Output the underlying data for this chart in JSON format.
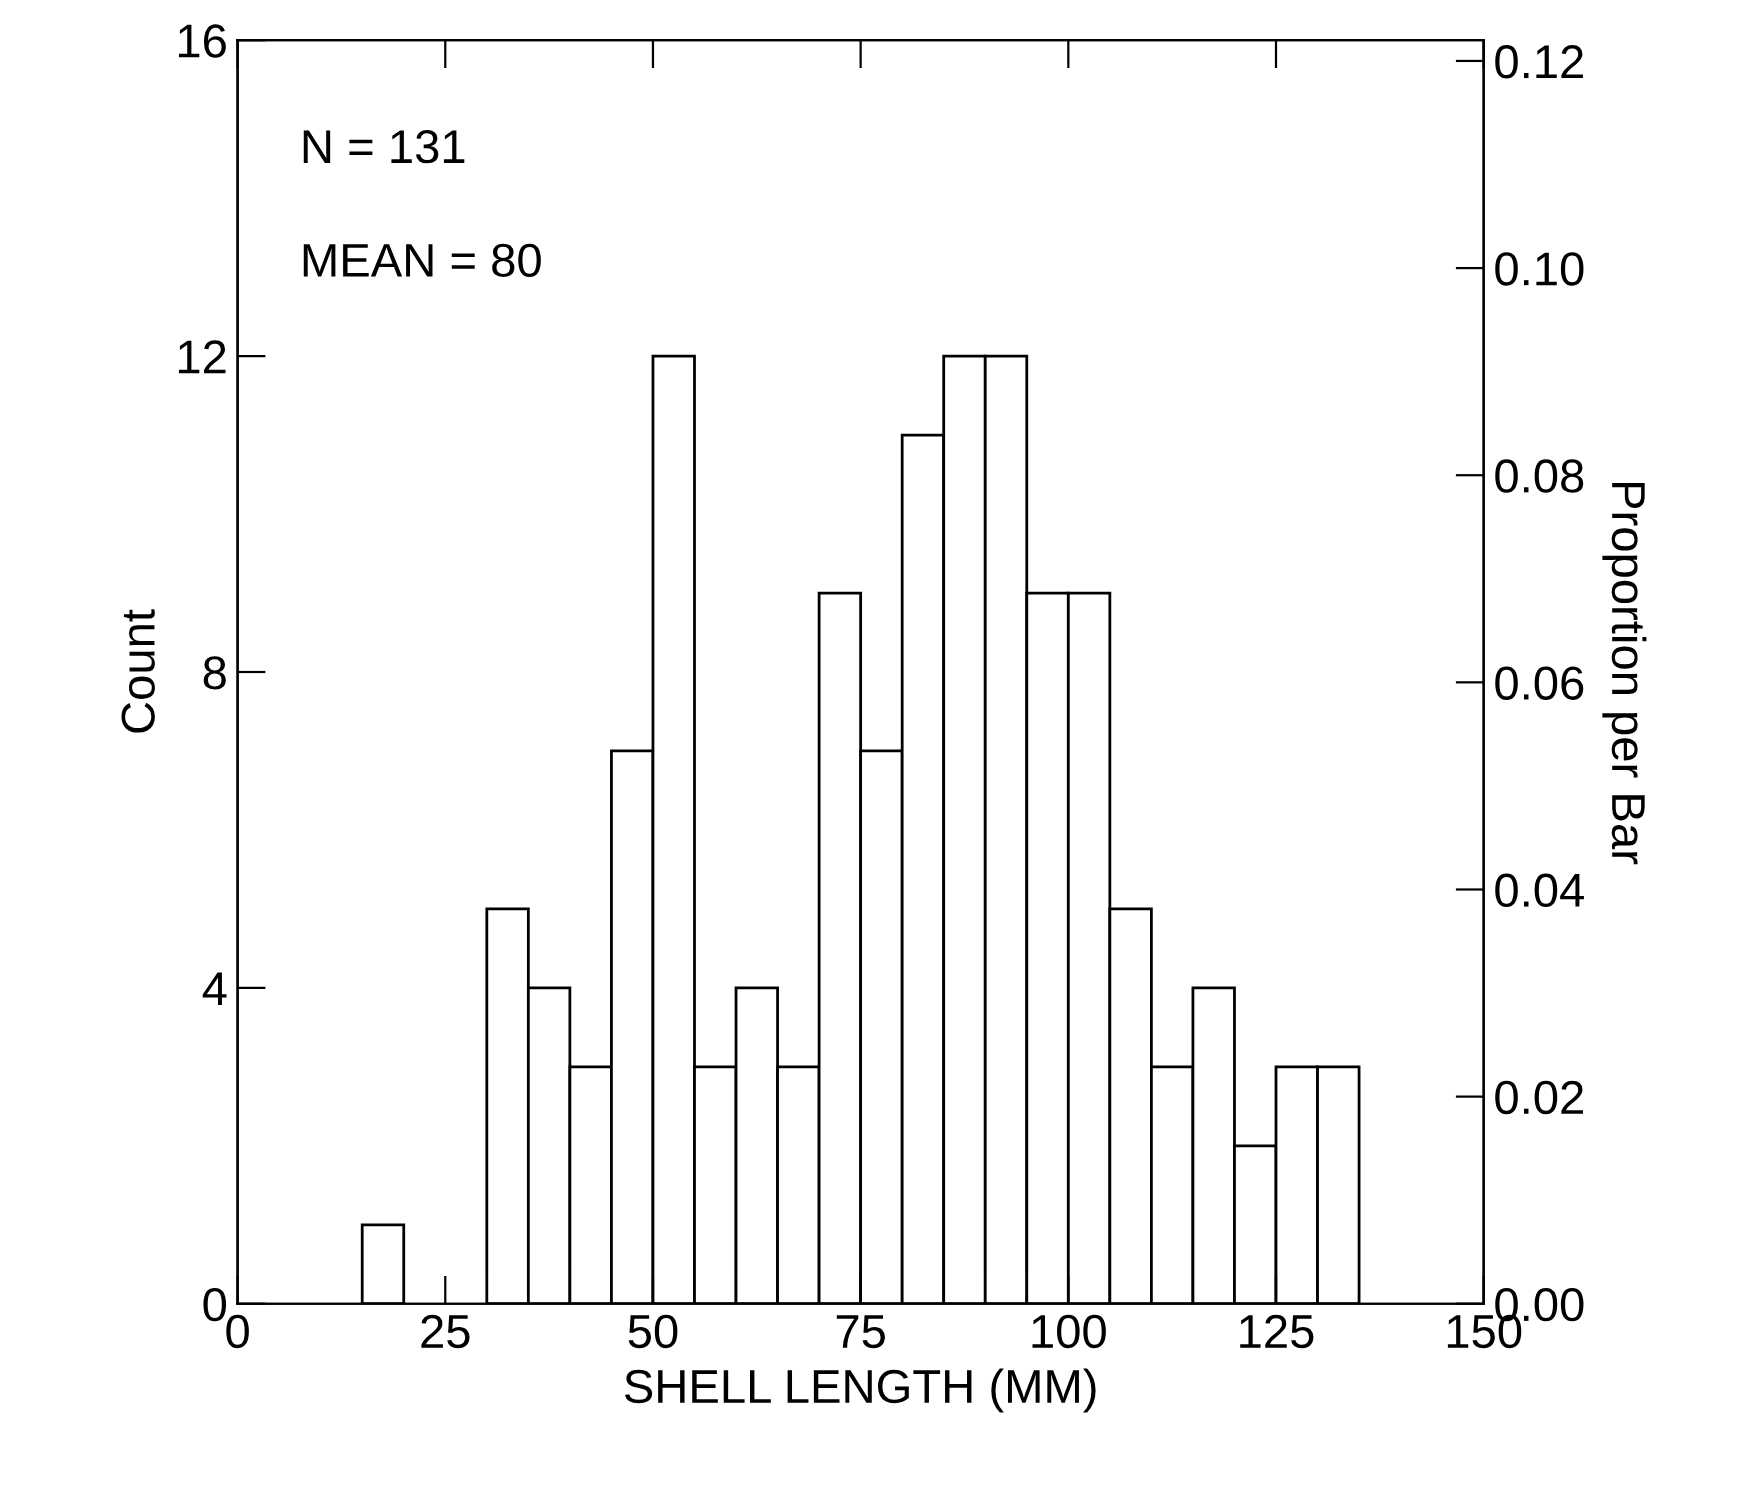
{
  "chart_data": {
    "type": "histogram",
    "xlabel": "SHELL LENGTH (MM)",
    "ylabel": "Count",
    "y2label": "Proportion per Bar",
    "bins": [
      15,
      20,
      25,
      30,
      35,
      40,
      45,
      50,
      55,
      60,
      65,
      70,
      75,
      80,
      85,
      90,
      95,
      100,
      105,
      110,
      115,
      120,
      125,
      130,
      135
    ],
    "values": [
      1,
      0,
      0,
      5,
      4,
      3,
      7,
      12,
      3,
      4,
      3,
      9,
      7,
      11,
      12,
      12,
      9,
      9,
      5,
      3,
      4,
      2,
      3,
      3
    ],
    "color": "#ffffff",
    "xlim": [
      0,
      150
    ],
    "xticks": [
      0,
      25,
      50,
      75,
      100,
      125,
      150
    ],
    "ylim": [
      0,
      16
    ],
    "yticks": [
      0,
      4,
      8,
      12,
      16
    ],
    "y2lim": [
      0,
      0.122
    ],
    "y2ticks": [
      {
        "value": 0,
        "label": "0.00"
      },
      {
        "value": 0.02,
        "label": "0.02"
      },
      {
        "value": 0.04,
        "label": "0.04"
      },
      {
        "value": 0.06,
        "label": "0.06"
      },
      {
        "value": 0.08,
        "label": "0.08"
      },
      {
        "value": 0.1,
        "label": "0.10"
      },
      {
        "value": 0.12,
        "label": "0.12"
      }
    ],
    "annotations": [
      "N = 131",
      "MEAN = 80"
    ],
    "grid": false,
    "legend": false
  }
}
